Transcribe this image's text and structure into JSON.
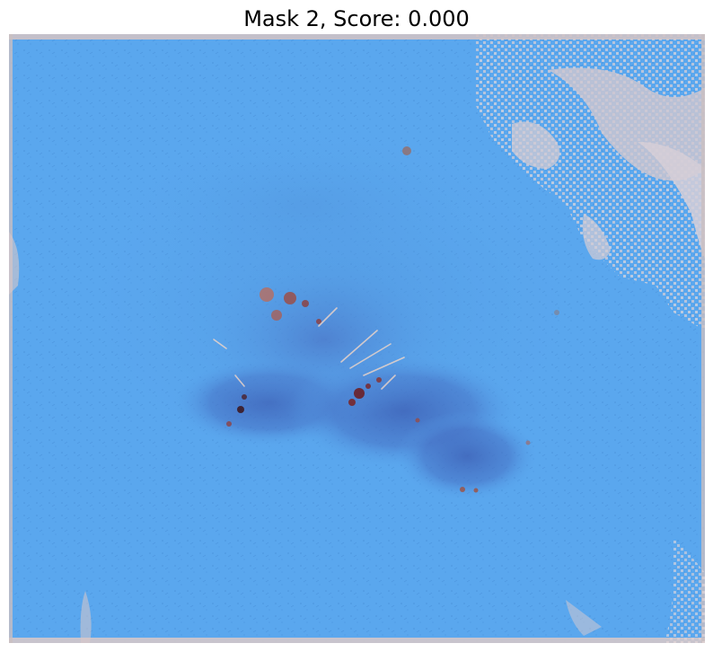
{
  "figure": {
    "title": "Mask 2, Score: 0.000"
  },
  "image": {
    "subject": "Skin lesion photograph with a blue segmentation mask overlay covering nearly the entire frame",
    "mask_color": "#5aa7ee",
    "skin_color": "#d8c6c8",
    "lesion_color": "#3f63b8"
  }
}
